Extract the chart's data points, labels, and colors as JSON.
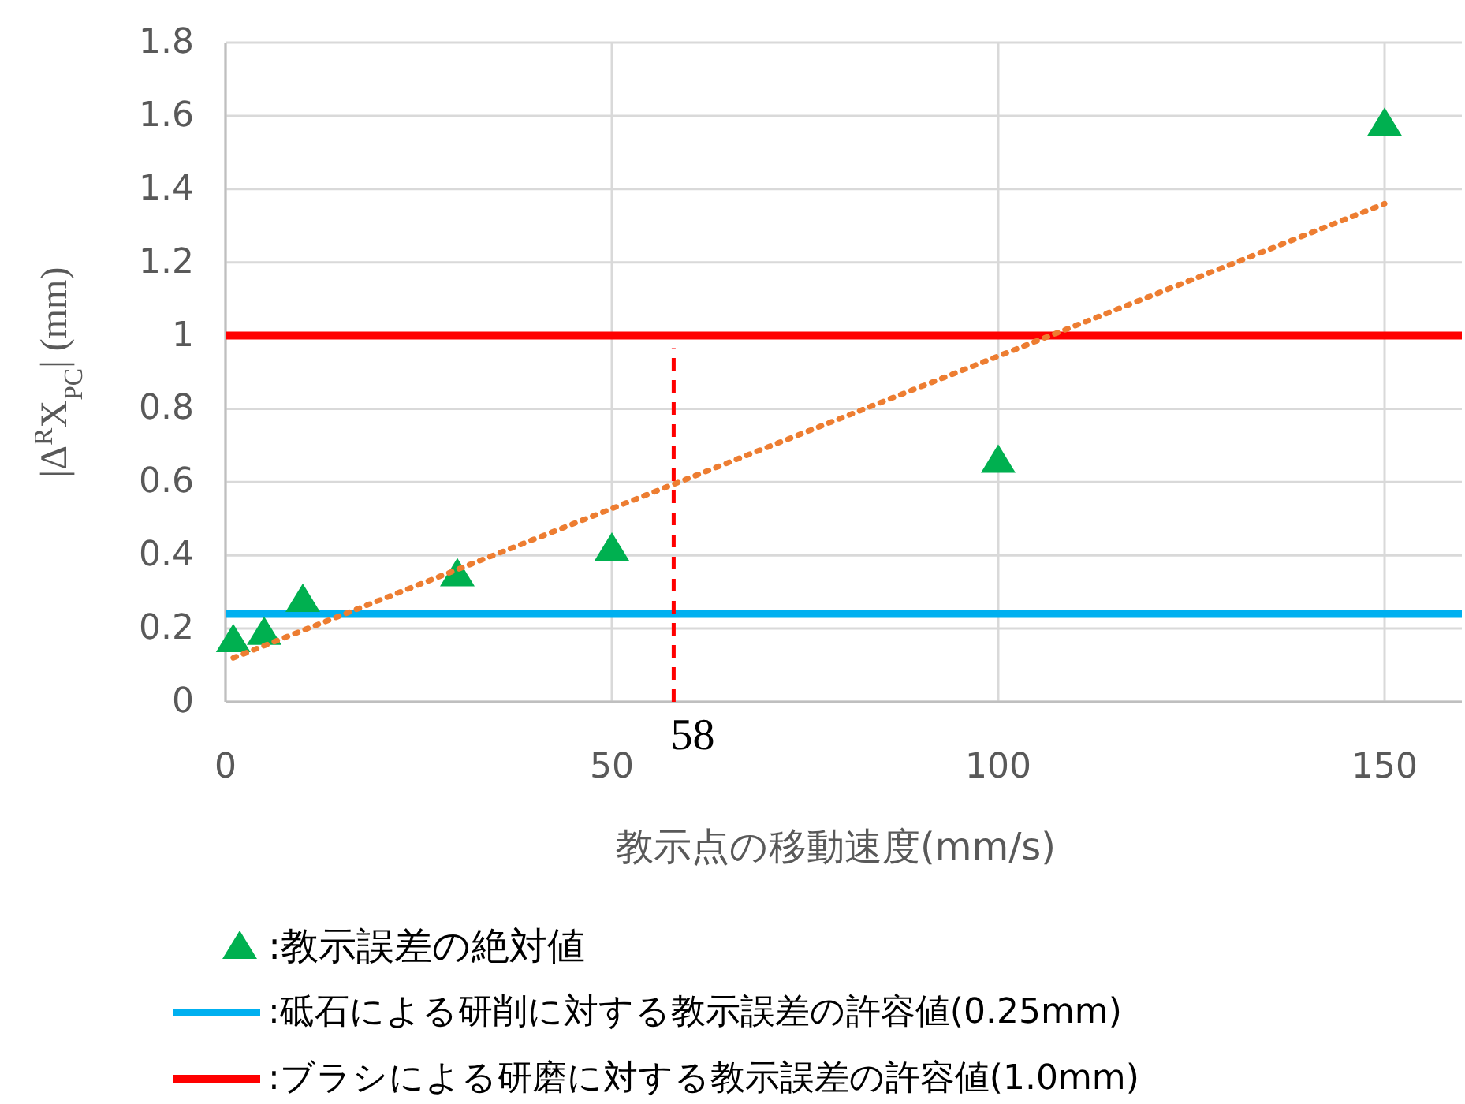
{
  "chart_data": {
    "type": "scatter",
    "xlabel": "教示点の移動速度(mm/s)",
    "ylabel": "|Δ$^{R}$X$_{PC}$| (mm)",
    "xlim": [
      0,
      160
    ],
    "xticks": [
      0,
      50,
      100,
      150
    ],
    "ylim": [
      0,
      1.8
    ],
    "yticks": [
      0,
      0.2,
      0.4,
      0.6,
      0.8,
      1,
      1.2,
      1.4,
      1.6,
      1.8
    ],
    "grid": true,
    "legend": "bottom",
    "marker": "triangle",
    "series": [
      {
        "name": ":教示誤差の絶対値",
        "color": "#00b050",
        "x": [
          1,
          5,
          10,
          30,
          50,
          100,
          150
        ],
        "values": [
          0.17,
          0.19,
          0.28,
          0.35,
          0.42,
          0.66,
          1.58
        ]
      },
      {
        "type": "line",
        "color": "#ed7d31",
        "line_style": "dotted",
        "marker": "none",
        "x": [
          1,
          150
        ],
        "values": [
          0.12,
          1.36
        ]
      }
    ],
    "ref_lines": [
      {
        "axis": "y",
        "value": 0.24,
        "label": ":砥石による研削に対する教示誤差の許容値(0.25mm)",
        "color": "#00b0f0",
        "line_style": "solid"
      },
      {
        "axis": "y",
        "value": 1,
        "label": ":ブラシによる研磨に対する教示誤差の許容値(1.0mm)",
        "color": "#ff0000",
        "line_style": "solid"
      },
      {
        "axis": "x",
        "value": 58,
        "label": "58",
        "color": "#ff0000",
        "line_style": "dashed"
      }
    ]
  }
}
